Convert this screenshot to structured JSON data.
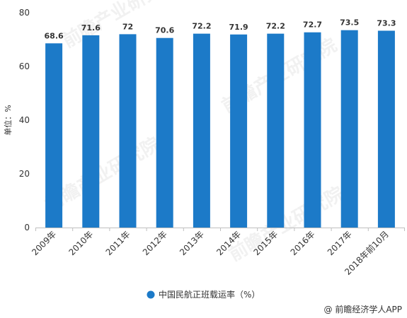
{
  "chart_data": {
    "type": "bar",
    "categories": [
      "2009年",
      "2010年",
      "2011年",
      "2012年",
      "2013年",
      "2014年",
      "2015年",
      "2016年",
      "2017年",
      "2018年前10月"
    ],
    "values": [
      68.6,
      71.6,
      72,
      70.6,
      72.2,
      71.9,
      72.2,
      72.7,
      73.5,
      73.3
    ],
    "value_labels": [
      "68.6",
      "71.6",
      "72",
      "70.6",
      "72.2",
      "71.9",
      "72.2",
      "72.7",
      "73.5",
      "73.3"
    ],
    "series_name": "中国民航正班载运率（%）",
    "ylabel": "单位：%",
    "ylim": [
      0,
      80
    ],
    "yticks": [
      0,
      20,
      40,
      60,
      80
    ],
    "grid": false,
    "legend_position": "bottom-center",
    "bar_color": "#1c7ac8"
  },
  "watermark": "前瞻产业研究院",
  "credit": "@ 前瞻经济学人APP"
}
